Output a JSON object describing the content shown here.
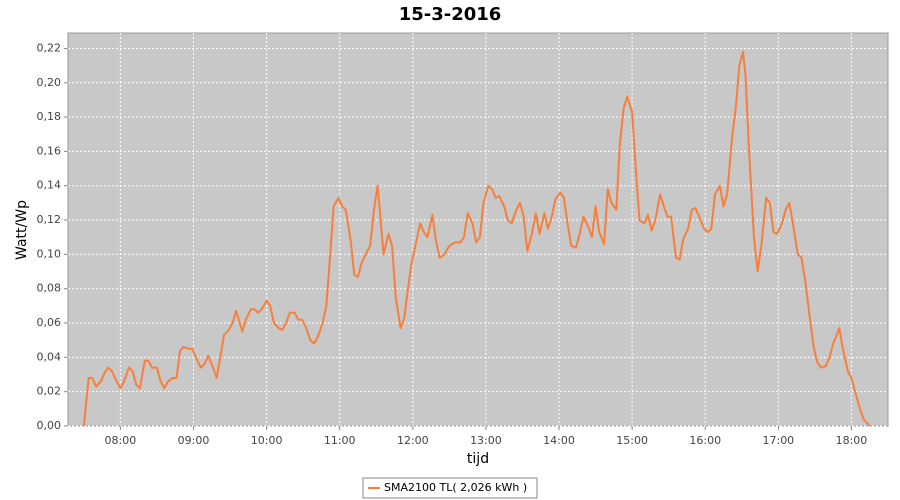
{
  "chart_data": {
    "type": "line",
    "title": "15-3-2016",
    "x_label": "tijd",
    "y_label": "Watt/Wp",
    "x": [
      "07:30",
      "07:34",
      "07:37",
      "07:40",
      "07:44",
      "07:47",
      "07:50",
      "07:53",
      "07:57",
      "08:00",
      "08:03",
      "08:07",
      "08:10",
      "08:13",
      "08:16",
      "08:20",
      "08:23",
      "08:26",
      "08:30",
      "08:33",
      "08:36",
      "08:39",
      "08:43",
      "08:46",
      "08:49",
      "08:52",
      "08:56",
      "08:59",
      "09:02",
      "09:06",
      "09:09",
      "09:12",
      "09:15",
      "09:19",
      "09:22",
      "09:25",
      "09:29",
      "09:32",
      "09:35",
      "09:38",
      "09:40",
      "09:43",
      "09:47",
      "09:50",
      "09:53",
      "09:56",
      "10:00",
      "10:03",
      "10:06",
      "10:10",
      "10:13",
      "10:16",
      "10:19",
      "10:23",
      "10:26",
      "10:29",
      "10:32",
      "10:36",
      "10:39",
      "10:42",
      "10:46",
      "10:49",
      "10:52",
      "10:55",
      "10:59",
      "11:02",
      "11:05",
      "11:09",
      "11:12",
      "11:15",
      "11:18",
      "11:22",
      "11:25",
      "11:28",
      "11:31",
      "11:33",
      "11:36",
      "11:40",
      "11:43",
      "11:46",
      "11:50",
      "11:53",
      "11:56",
      "11:59",
      "12:03",
      "12:06",
      "12:09",
      "12:12",
      "12:16",
      "12:19",
      "12:22",
      "12:26",
      "12:29",
      "12:32",
      "12:35",
      "12:39",
      "12:42",
      "12:45",
      "12:49",
      "12:52",
      "12:55",
      "12:58",
      "13:02",
      "13:05",
      "13:08",
      "13:11",
      "13:15",
      "13:18",
      "13:21",
      "13:25",
      "13:28",
      "13:31",
      "13:34",
      "13:38",
      "13:41",
      "13:44",
      "13:48",
      "13:51",
      "13:54",
      "13:57",
      "14:01",
      "14:04",
      "14:07",
      "14:10",
      "14:14",
      "14:17",
      "14:20",
      "14:24",
      "14:27",
      "14:30",
      "14:33",
      "14:37",
      "14:40",
      "14:43",
      "14:47",
      "14:50",
      "14:53",
      "14:56",
      "15:00",
      "15:03",
      "15:06",
      "15:10",
      "15:13",
      "15:16",
      "15:19",
      "15:23",
      "15:26",
      "15:29",
      "15:32",
      "15:36",
      "15:39",
      "15:42",
      "15:46",
      "15:49",
      "15:52",
      "15:55",
      "15:59",
      "16:02",
      "16:05",
      "16:08",
      "16:12",
      "16:15",
      "16:18",
      "16:22",
      "16:25",
      "16:28",
      "16:31",
      "16:33",
      "16:36",
      "16:40",
      "16:43",
      "16:46",
      "16:50",
      "16:53",
      "16:56",
      "16:59",
      "17:03",
      "17:06",
      "17:09",
      "17:12",
      "17:16",
      "17:19",
      "17:22",
      "17:26",
      "17:29",
      "17:32",
      "17:35",
      "17:39",
      "17:42",
      "17:45",
      "17:49",
      "17:50",
      "17:53",
      "17:57",
      "18:00",
      "18:03",
      "18:07",
      "18:10",
      "18:15"
    ],
    "series": [
      {
        "name": "SMA2100 TL( 2,026 kWh )",
        "color": "#f77f3c",
        "values": [
          0,
          0.028,
          0.028,
          0.023,
          0.026,
          0.031,
          0.034,
          0.032,
          0.026,
          0.022,
          0.026,
          0.034,
          0.032,
          0.024,
          0.022,
          0.038,
          0.038,
          0.034,
          0.034,
          0.026,
          0.022,
          0.026,
          0.028,
          0.028,
          0.044,
          0.046,
          0.045,
          0.045,
          0.04,
          0.034,
          0.036,
          0.041,
          0.036,
          0.028,
          0.04,
          0.053,
          0.056,
          0.06,
          0.067,
          0.06,
          0.055,
          0.062,
          0.068,
          0.068,
          0.066,
          0.068,
          0.073,
          0.07,
          0.06,
          0.057,
          0.056,
          0.06,
          0.066,
          0.066,
          0.062,
          0.062,
          0.058,
          0.05,
          0.048,
          0.052,
          0.06,
          0.07,
          0.098,
          0.128,
          0.133,
          0.128,
          0.126,
          0.108,
          0.088,
          0.087,
          0.095,
          0.101,
          0.105,
          0.125,
          0.14,
          0.125,
          0.1,
          0.112,
          0.105,
          0.075,
          0.057,
          0.063,
          0.08,
          0.095,
          0.108,
          0.118,
          0.113,
          0.11,
          0.123,
          0.108,
          0.098,
          0.1,
          0.104,
          0.106,
          0.107,
          0.107,
          0.11,
          0.124,
          0.118,
          0.107,
          0.11,
          0.13,
          0.14,
          0.138,
          0.133,
          0.134,
          0.128,
          0.12,
          0.118,
          0.126,
          0.13,
          0.122,
          0.102,
          0.113,
          0.124,
          0.112,
          0.124,
          0.115,
          0.122,
          0.132,
          0.136,
          0.133,
          0.118,
          0.105,
          0.104,
          0.112,
          0.122,
          0.116,
          0.11,
          0.128,
          0.113,
          0.106,
          0.138,
          0.13,
          0.126,
          0.165,
          0.185,
          0.192,
          0.183,
          0.15,
          0.12,
          0.118,
          0.123,
          0.114,
          0.12,
          0.135,
          0.128,
          0.122,
          0.122,
          0.098,
          0.097,
          0.109,
          0.115,
          0.126,
          0.127,
          0.122,
          0.115,
          0.113,
          0.115,
          0.135,
          0.14,
          0.128,
          0.135,
          0.168,
          0.185,
          0.21,
          0.218,
          0.205,
          0.16,
          0.11,
          0.09,
          0.105,
          0.133,
          0.13,
          0.113,
          0.112,
          0.118,
          0.126,
          0.13,
          0.118,
          0.1,
          0.098,
          0.085,
          0.062,
          0.046,
          0.037,
          0.034,
          0.035,
          0.04,
          0.048,
          0.055,
          0.057,
          0.045,
          0.032,
          0.028,
          0.02,
          0.01,
          0.004,
          0
        ]
      }
    ],
    "xlim": [
      "07:17",
      "18:30"
    ],
    "xticks": [
      "08:00",
      "09:00",
      "10:00",
      "11:00",
      "12:00",
      "13:00",
      "14:00",
      "15:00",
      "16:00",
      "17:00",
      "18:00"
    ],
    "ylim": [
      0,
      0.229
    ],
    "yticks": [
      {
        "value": 0,
        "label": "0,00"
      },
      {
        "value": 0.02,
        "label": "0,02"
      },
      {
        "value": 0.04,
        "label": "0,04"
      },
      {
        "value": 0.06,
        "label": "0,06"
      },
      {
        "value": 0.08,
        "label": "0,08"
      },
      {
        "value": 0.1,
        "label": "0,10"
      },
      {
        "value": 0.12,
        "label": "0,12"
      },
      {
        "value": 0.14,
        "label": "0,14"
      },
      {
        "value": 0.16,
        "label": "0,16"
      },
      {
        "value": 0.18,
        "label": "0,18"
      },
      {
        "value": 0.2,
        "label": "0,20"
      },
      {
        "value": 0.22,
        "label": "0,22"
      }
    ],
    "grid": true,
    "legend": "bottom"
  }
}
